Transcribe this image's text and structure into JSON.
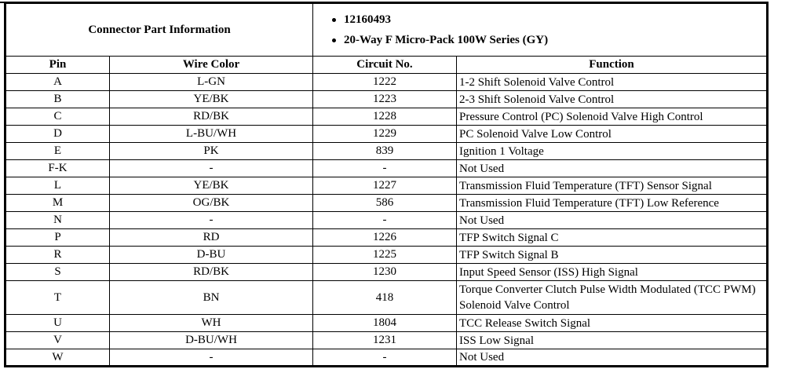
{
  "header": {
    "left_title": "Connector Part Information",
    "bullets": [
      "12160493",
      "20-Way F Micro-Pack 100W Series (GY)"
    ]
  },
  "columns": {
    "pin": "Pin",
    "wire_color": "Wire Color",
    "circuit_no": "Circuit No.",
    "function": "Function"
  },
  "rows": [
    {
      "pin": "A",
      "wire": "L-GN",
      "circuit": "1222",
      "func": "1-2 Shift Solenoid Valve Control"
    },
    {
      "pin": "B",
      "wire": "YE/BK",
      "circuit": "1223",
      "func": "2-3 Shift Solenoid Valve Control"
    },
    {
      "pin": "C",
      "wire": "RD/BK",
      "circuit": "1228",
      "func": "Pressure Control (PC) Solenoid Valve High Control"
    },
    {
      "pin": "D",
      "wire": "L-BU/WH",
      "circuit": "1229",
      "func": "PC Solenoid Valve Low Control"
    },
    {
      "pin": "E",
      "wire": "PK",
      "circuit": "839",
      "func": "Ignition 1 Voltage"
    },
    {
      "pin": "F-K",
      "wire": "-",
      "circuit": "-",
      "func": "Not Used"
    },
    {
      "pin": "L",
      "wire": "YE/BK",
      "circuit": "1227",
      "func": "Transmission Fluid Temperature (TFT) Sensor Signal"
    },
    {
      "pin": "M",
      "wire": "OG/BK",
      "circuit": "586",
      "func": "Transmission Fluid Temperature (TFT) Low Reference"
    },
    {
      "pin": "N",
      "wire": "-",
      "circuit": "-",
      "func": "Not Used"
    },
    {
      "pin": "P",
      "wire": "RD",
      "circuit": "1226",
      "func": "TFP Switch Signal C"
    },
    {
      "pin": "R",
      "wire": "D-BU",
      "circuit": "1225",
      "func": "TFP Switch Signal B"
    },
    {
      "pin": "S",
      "wire": "RD/BK",
      "circuit": "1230",
      "func": "Input Speed Sensor (ISS) High Signal"
    },
    {
      "pin": "T",
      "wire": "BN",
      "circuit": "418",
      "func": "Torque Converter Clutch Pulse Width Modulated (TCC PWM) Solenoid Valve Control"
    },
    {
      "pin": "U",
      "wire": "WH",
      "circuit": "1804",
      "func": "TCC Release Switch Signal"
    },
    {
      "pin": "V",
      "wire": "D-BU/WH",
      "circuit": "1231",
      "func": "ISS Low Signal"
    },
    {
      "pin": "W",
      "wire": "-",
      "circuit": "-",
      "func": "Not Used"
    }
  ]
}
